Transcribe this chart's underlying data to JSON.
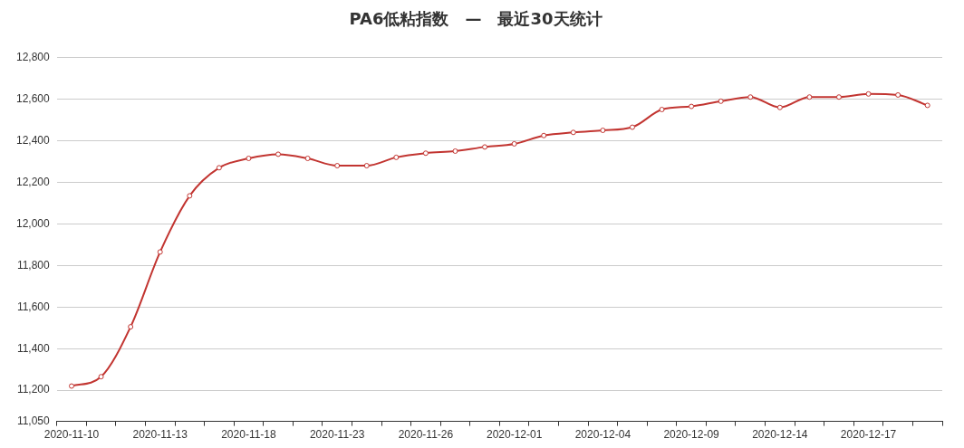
{
  "chart_data": {
    "type": "line",
    "title": "PA6低粘指数　—　最近30天统计",
    "categories": [
      "2020-11-10",
      null,
      null,
      "2020-11-13",
      null,
      null,
      "2020-11-18",
      null,
      null,
      "2020-11-23",
      null,
      null,
      "2020-11-26",
      null,
      null,
      "2020-12-01",
      null,
      null,
      "2020-12-04",
      null,
      null,
      "2020-12-09",
      null,
      null,
      "2020-12-14",
      null,
      null,
      "2020-12-17",
      null,
      null
    ],
    "series": [
      {
        "color": "#c23531",
        "values": [
          11220,
          11265,
          11505,
          11865,
          12135,
          12270,
          12315,
          12335,
          12315,
          12280,
          12280,
          12320,
          12340,
          12350,
          12370,
          12385,
          12425,
          12440,
          12450,
          12465,
          12550,
          12565,
          12590,
          12610,
          12560,
          12610,
          12610,
          12625,
          12620,
          12570
        ]
      }
    ],
    "ylim": [
      11050,
      12800
    ],
    "yticks": [
      {
        "value": 11050,
        "label": "11,050"
      },
      {
        "value": 11200,
        "label": "11,200"
      },
      {
        "value": 11400,
        "label": "11,400"
      },
      {
        "value": 11600,
        "label": "11,600"
      },
      {
        "value": 11800,
        "label": "11,800"
      },
      {
        "value": 12000,
        "label": "12,000"
      },
      {
        "value": 12200,
        "label": "12,200"
      },
      {
        "value": 12400,
        "label": "12,400"
      },
      {
        "value": 12600,
        "label": "12,600"
      },
      {
        "value": 12800,
        "label": "12,800"
      }
    ],
    "grid": "y",
    "legend": false,
    "marker": "circle",
    "line_style": "solid"
  }
}
